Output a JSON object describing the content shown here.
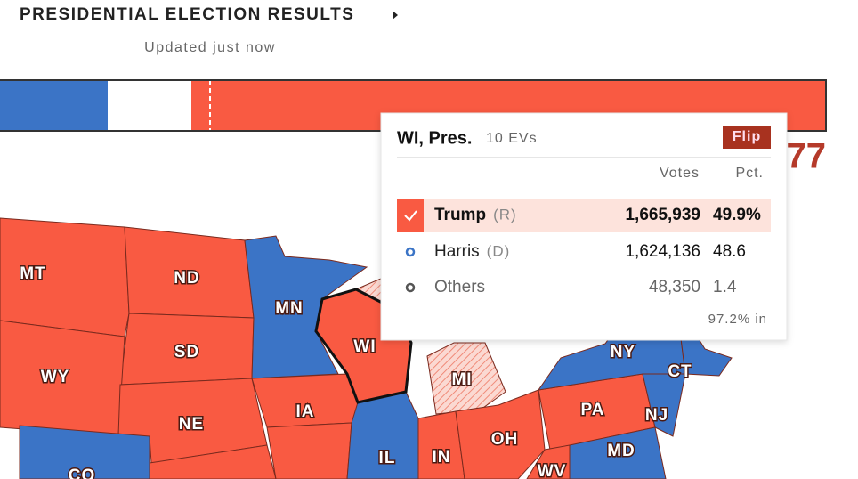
{
  "header": {
    "title": "PRESIDENTIAL ELECTION RESULTS",
    "subtitle": "Updated just now"
  },
  "tally": {
    "partial_count": "77"
  },
  "tooltip": {
    "state": "WI, Pres.",
    "electoral_votes": "10 EVs",
    "badge": "Flip",
    "columns": [
      "Votes",
      "Pct."
    ],
    "rows": [
      {
        "name": "Trump",
        "party": "(R)",
        "votes": "1,665,939",
        "pct": "49.9%"
      },
      {
        "name": "Harris",
        "party": "(D)",
        "votes": "1,624,136",
        "pct": "48.6"
      },
      {
        "name": "Others",
        "votes": "48,350",
        "pct": "1.4"
      }
    ],
    "reporting": "97.2% in"
  },
  "map": {
    "labels": [
      "MT",
      "ND",
      "SD",
      "WY",
      "NE",
      "CO",
      "MN",
      "WI",
      "IA",
      "IL",
      "IN",
      "MI",
      "OH",
      "PA",
      "NY",
      "CT",
      "NJ",
      "MD",
      "WV"
    ]
  }
}
